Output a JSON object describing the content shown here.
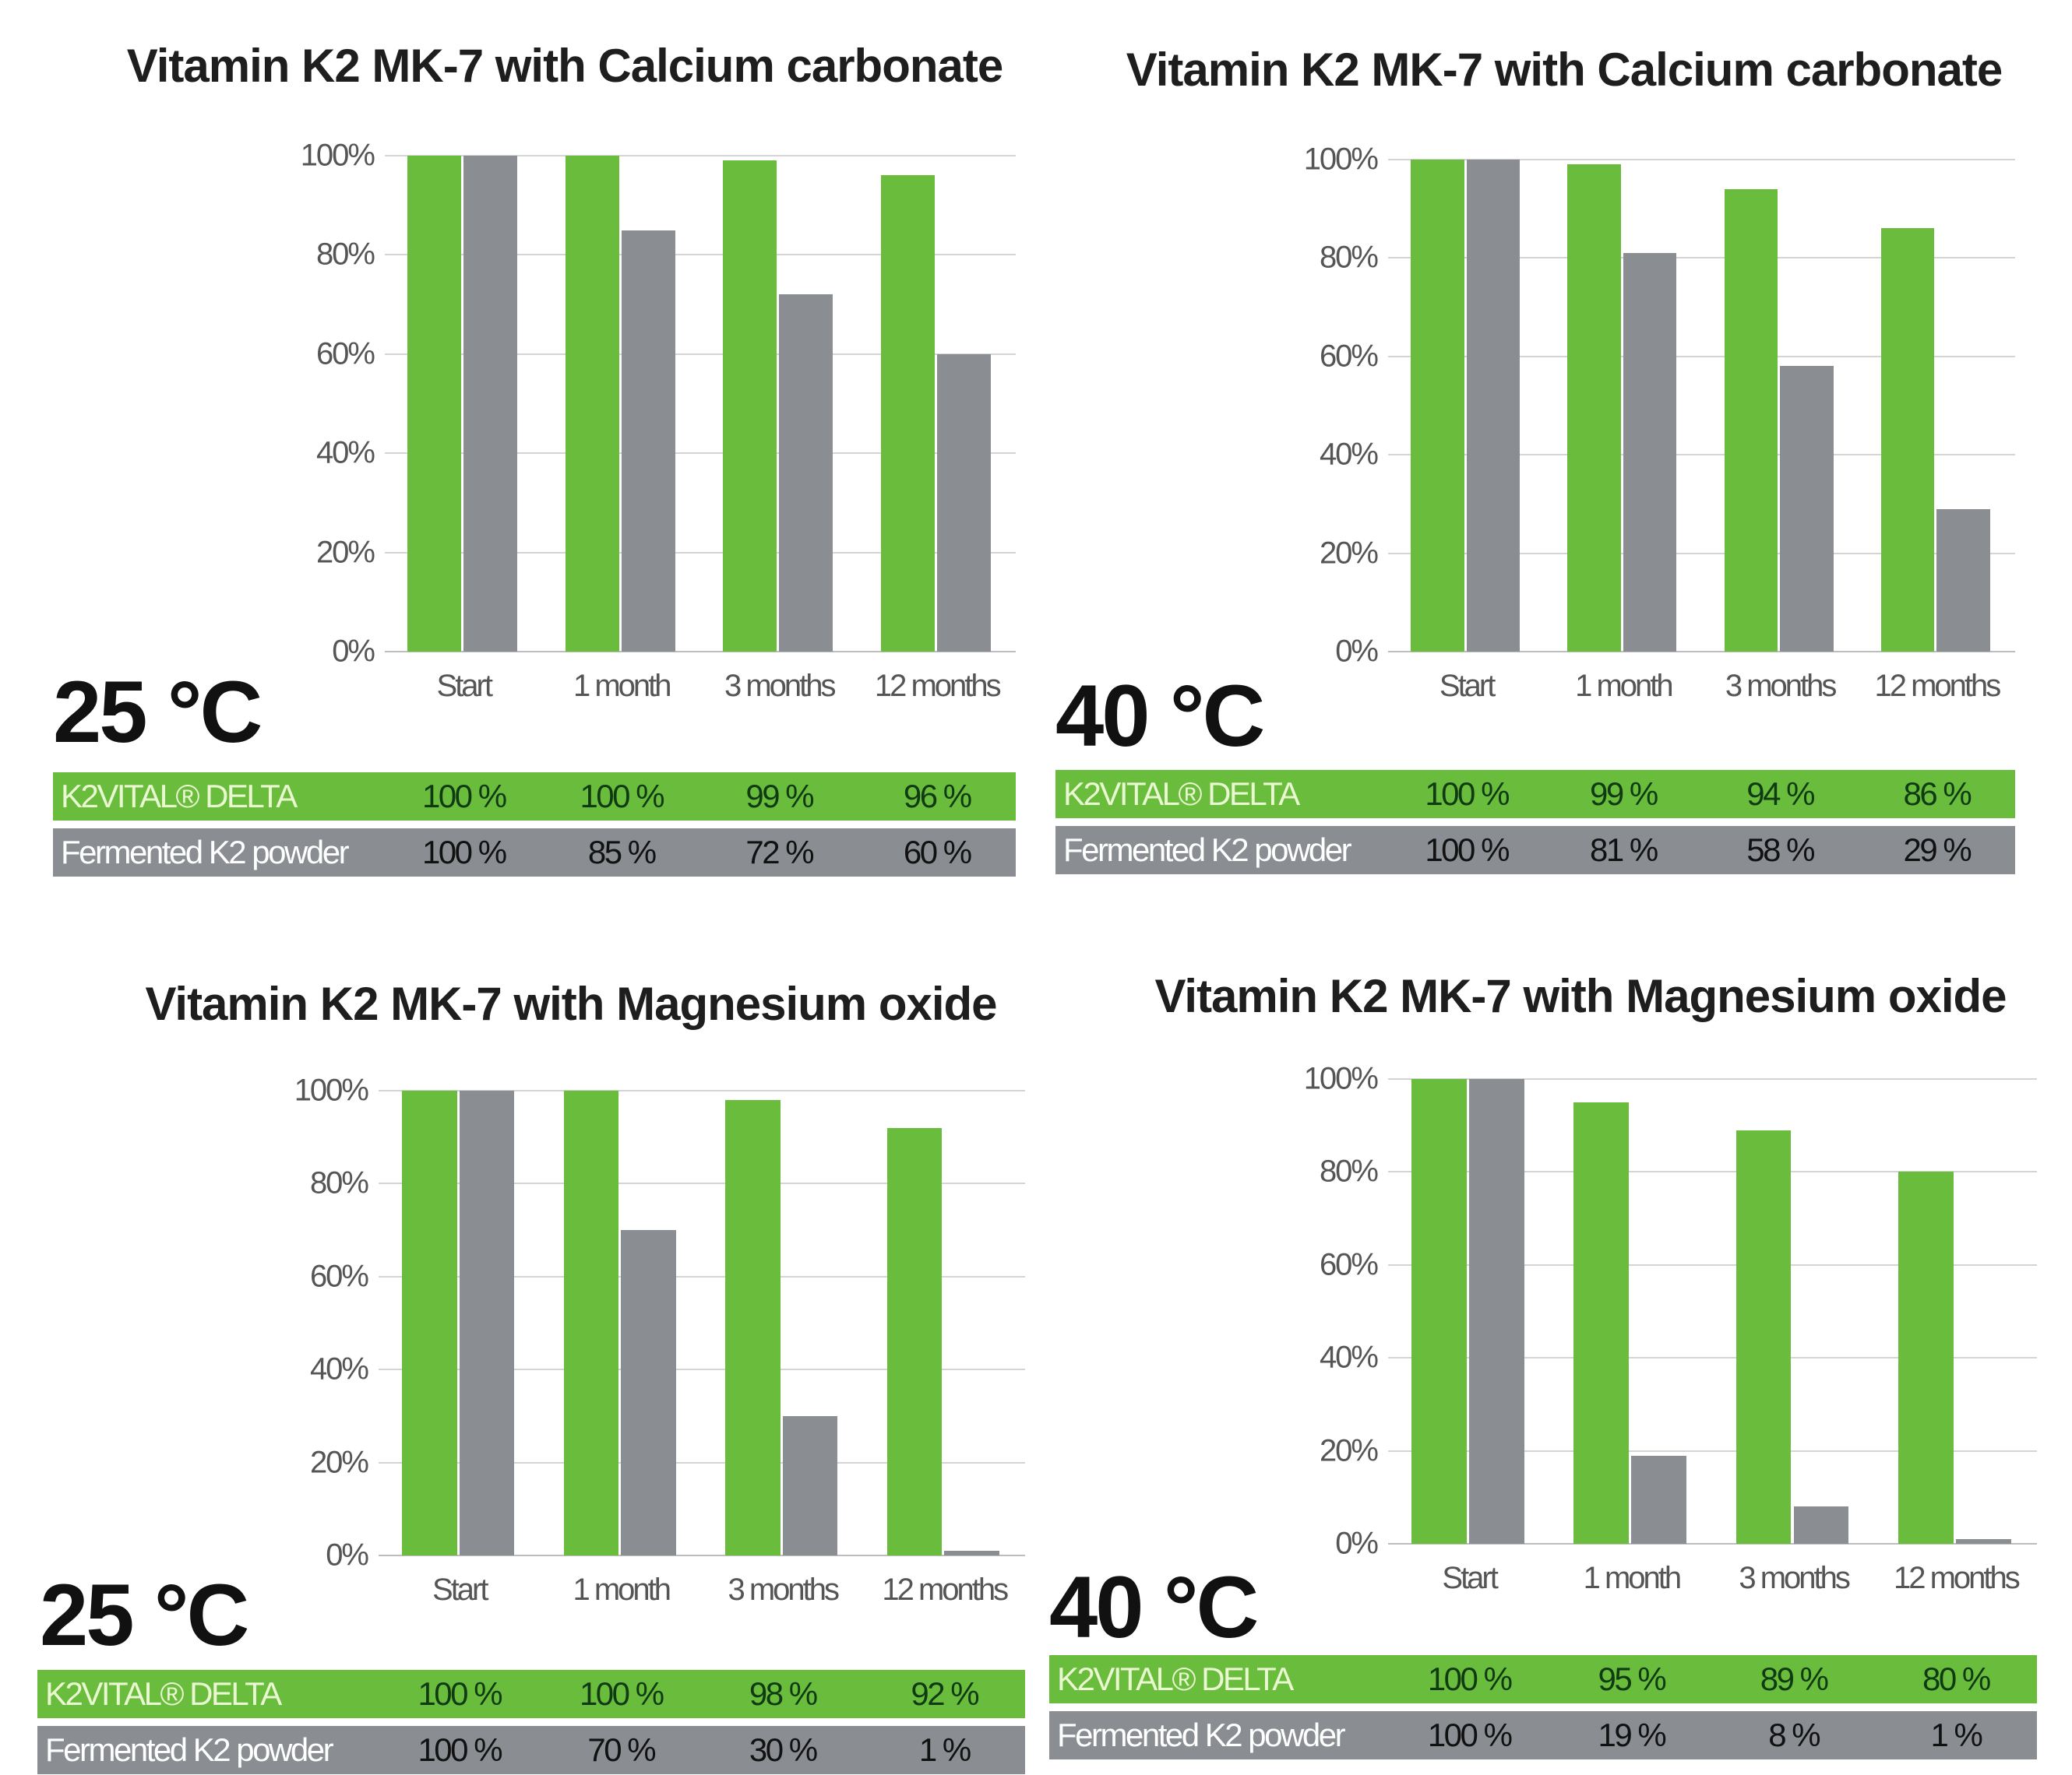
{
  "colors": {
    "green": "#6abd3c",
    "gray": "#8a8e93",
    "green_label": "#eaf8d2",
    "green_value": "#0f3a12",
    "gray_label": "#ffffff",
    "gray_value": "#111111"
  },
  "chart_data": [
    {
      "type": "bar",
      "title": "Vitamin K2 MK-7 with Calcium carbonate",
      "temperature": "25 °C",
      "categories": [
        "Start",
        "1 month",
        "3 months",
        "12 months"
      ],
      "yticks": [
        "0%",
        "20%",
        "40%",
        "60%",
        "80%",
        "100%"
      ],
      "ylim": [
        0,
        100
      ],
      "series": [
        {
          "name": "K2VITAL® DELTA",
          "values": [
            100,
            100,
            99,
            96
          ],
          "labels": [
            "100 %",
            "100 %",
            "99 %",
            "96 %"
          ]
        },
        {
          "name": "Fermented K2 powder",
          "values": [
            100,
            85,
            72,
            60
          ],
          "labels": [
            "100 %",
            "85 %",
            "72 %",
            "60 %"
          ]
        }
      ]
    },
    {
      "type": "bar",
      "title": "Vitamin K2 MK-7 with Calcium carbonate",
      "temperature": "40 °C",
      "categories": [
        "Start",
        "1 month",
        "3 months",
        "12 months"
      ],
      "yticks": [
        "0%",
        "20%",
        "40%",
        "60%",
        "80%",
        "100%"
      ],
      "ylim": [
        0,
        100
      ],
      "series": [
        {
          "name": "K2VITAL® DELTA",
          "values": [
            100,
            99,
            94,
            86
          ],
          "labels": [
            "100 %",
            "99 %",
            "94 %",
            "86 %"
          ]
        },
        {
          "name": "Fermented K2 powder",
          "values": [
            100,
            81,
            58,
            29
          ],
          "labels": [
            "100 %",
            "81 %",
            "58 %",
            "29 %"
          ]
        }
      ]
    },
    {
      "type": "bar",
      "title": "Vitamin K2 MK-7 with Magnesium oxide",
      "temperature": "25 °C",
      "categories": [
        "Start",
        "1 month",
        "3 months",
        "12 months"
      ],
      "yticks": [
        "0%",
        "20%",
        "40%",
        "60%",
        "80%",
        "100%"
      ],
      "ylim": [
        0,
        100
      ],
      "series": [
        {
          "name": "K2VITAL® DELTA",
          "values": [
            100,
            100,
            98,
            92
          ],
          "labels": [
            "100 %",
            "100 %",
            "98 %",
            "92 %"
          ]
        },
        {
          "name": "Fermented K2 powder",
          "values": [
            100,
            70,
            30,
            1
          ],
          "labels": [
            "100 %",
            "70 %",
            "30 %",
            "1 %"
          ]
        }
      ]
    },
    {
      "type": "bar",
      "title": "Vitamin K2 MK-7 with Magnesium oxide",
      "temperature": "40 °C",
      "categories": [
        "Start",
        "1 month",
        "3 months",
        "12 months"
      ],
      "yticks": [
        "0%",
        "20%",
        "40%",
        "60%",
        "80%",
        "100%"
      ],
      "ylim": [
        0,
        100
      ],
      "series": [
        {
          "name": "K2VITAL® DELTA",
          "values": [
            100,
            95,
            89,
            80
          ],
          "labels": [
            "100 %",
            "95 %",
            "89 %",
            "80 %"
          ]
        },
        {
          "name": "Fermented K2 powder",
          "values": [
            100,
            19,
            8,
            1
          ],
          "labels": [
            "100 %",
            "19 %",
            "8 %",
            "1 %"
          ]
        }
      ]
    }
  ]
}
